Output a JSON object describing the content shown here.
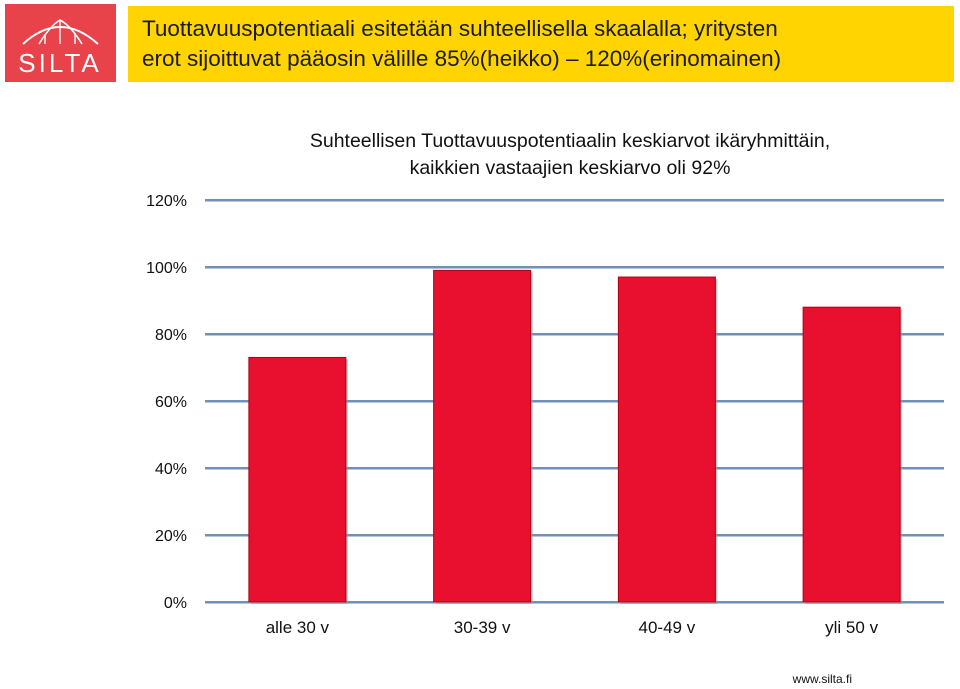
{
  "logo": {
    "text": "SILTA",
    "color": "#e8424a"
  },
  "banner": {
    "title": "Tuottavuuspotentiaali esitetään suhteellisella skaalalla; yritysten\nerot sijoittuvat pääosin välille 85%(heikko) – 120%(erinomainen)",
    "background": "#ffd400"
  },
  "chart_data": {
    "type": "bar",
    "title": "Suhteellisen Tuottavuuspotentiaalin keskiarvot ikäryhmittäin,\nkaikkien vastaajien keskiarvo oli 92%",
    "categories": [
      "alle 30 v",
      "30-39 v",
      "40-49 v",
      "yli 50 v"
    ],
    "values": [
      73,
      99,
      97,
      88
    ],
    "yticks": [
      "0%",
      "20%",
      "40%",
      "60%",
      "80%",
      "100%",
      "120%"
    ],
    "ylim": [
      0,
      120
    ],
    "grid": true,
    "bar_color": "#e8102e",
    "grid_color": "#1f4e8c"
  },
  "footer": {
    "url": "www.silta.fi"
  }
}
